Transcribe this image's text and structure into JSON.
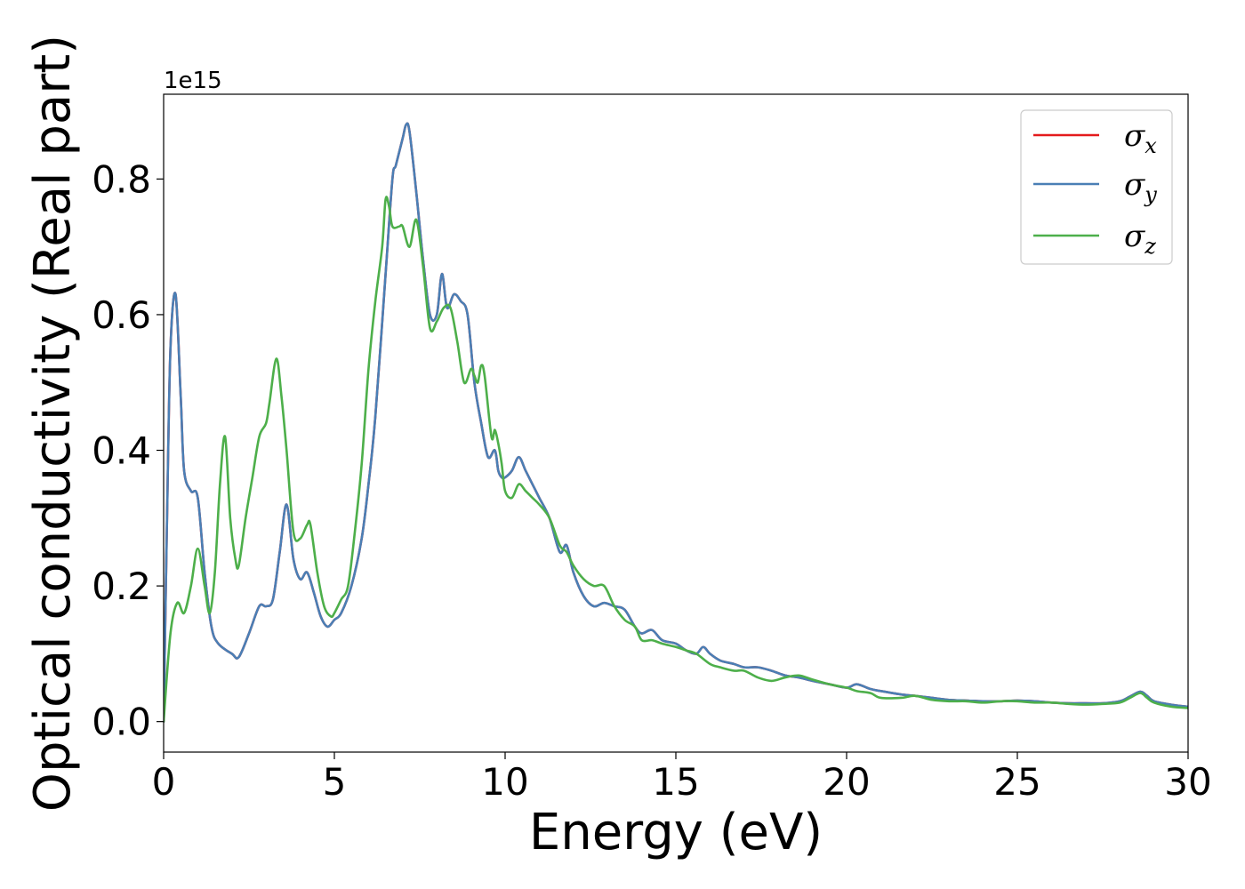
{
  "chart_data": {
    "type": "line",
    "title": "",
    "xlabel": "Energy (eV)",
    "ylabel": "Optical conductivity (Real part)",
    "y_offset_label": "1e15",
    "xlim": [
      0,
      30
    ],
    "ylim": [
      -0.045,
      0.925
    ],
    "x_ticks": [
      0,
      5,
      10,
      15,
      20,
      25,
      30
    ],
    "x_tick_labels": [
      "0",
      "5",
      "10",
      "15",
      "20",
      "25",
      "30"
    ],
    "y_ticks": [
      0.0,
      0.2,
      0.4,
      0.6,
      0.8
    ],
    "y_tick_labels": [
      "0.0",
      "0.2",
      "0.4",
      "0.6",
      "0.8"
    ],
    "grid": false,
    "legend_position": "top-right",
    "series": [
      {
        "name": "σx",
        "symbol": "σ",
        "subscript": "x",
        "color": "#e41a1c",
        "x": [
          0,
          0.1,
          0.2,
          0.35,
          0.5,
          0.6,
          0.8,
          1.0,
          1.2,
          1.4,
          1.6,
          2.0,
          2.2,
          2.5,
          2.8,
          3.0,
          3.2,
          3.4,
          3.6,
          3.8,
          4.0,
          4.2,
          4.4,
          4.6,
          4.8,
          5.0,
          5.2,
          5.5,
          5.8,
          6.0,
          6.2,
          6.5,
          6.7,
          6.8,
          7.0,
          7.1,
          7.2,
          7.4,
          7.6,
          7.8,
          8.0,
          8.15,
          8.3,
          8.5,
          8.7,
          8.9,
          9.1,
          9.3,
          9.5,
          9.7,
          9.8,
          9.9,
          10.0,
          10.2,
          10.4,
          10.6,
          10.8,
          11.0,
          11.3,
          11.6,
          11.8,
          12.0,
          12.3,
          12.6,
          12.9,
          13.2,
          13.5,
          13.8,
          14.0,
          14.3,
          14.6,
          15.0,
          15.3,
          15.6,
          15.8,
          16.0,
          16.3,
          16.7,
          17.0,
          17.4,
          17.8,
          18.2,
          18.6,
          19.0,
          19.5,
          20.0,
          20.3,
          20.7,
          21.0,
          21.6,
          22.0,
          22.5,
          23.0,
          23.5,
          24.0,
          24.5,
          25.0,
          25.5,
          26.0,
          26.5,
          27.0,
          27.5,
          28.0,
          28.3,
          28.6,
          28.8,
          29.0,
          29.5,
          30.0
        ],
        "y": [
          0.0,
          0.3,
          0.55,
          0.63,
          0.48,
          0.37,
          0.34,
          0.33,
          0.22,
          0.14,
          0.115,
          0.1,
          0.095,
          0.13,
          0.17,
          0.17,
          0.18,
          0.25,
          0.32,
          0.24,
          0.21,
          0.22,
          0.19,
          0.155,
          0.14,
          0.15,
          0.16,
          0.2,
          0.27,
          0.35,
          0.45,
          0.66,
          0.8,
          0.82,
          0.86,
          0.88,
          0.87,
          0.78,
          0.68,
          0.6,
          0.6,
          0.66,
          0.61,
          0.63,
          0.62,
          0.6,
          0.5,
          0.44,
          0.39,
          0.4,
          0.37,
          0.36,
          0.36,
          0.37,
          0.39,
          0.37,
          0.35,
          0.33,
          0.3,
          0.25,
          0.26,
          0.22,
          0.185,
          0.17,
          0.175,
          0.17,
          0.165,
          0.14,
          0.13,
          0.135,
          0.12,
          0.115,
          0.105,
          0.1,
          0.11,
          0.1,
          0.09,
          0.085,
          0.08,
          0.08,
          0.075,
          0.068,
          0.065,
          0.06,
          0.055,
          0.05,
          0.055,
          0.048,
          0.045,
          0.04,
          0.038,
          0.035,
          0.032,
          0.031,
          0.03,
          0.03,
          0.031,
          0.03,
          0.028,
          0.027,
          0.027,
          0.027,
          0.03,
          0.037,
          0.044,
          0.038,
          0.03,
          0.025,
          0.022
        ]
      },
      {
        "name": "σy",
        "symbol": "σ",
        "subscript": "y",
        "color": "#4a7fb5",
        "x": [
          0,
          0.1,
          0.2,
          0.35,
          0.5,
          0.6,
          0.8,
          1.0,
          1.2,
          1.4,
          1.6,
          2.0,
          2.2,
          2.5,
          2.8,
          3.0,
          3.2,
          3.4,
          3.6,
          3.8,
          4.0,
          4.2,
          4.4,
          4.6,
          4.8,
          5.0,
          5.2,
          5.5,
          5.8,
          6.0,
          6.2,
          6.5,
          6.7,
          6.8,
          7.0,
          7.1,
          7.2,
          7.4,
          7.6,
          7.8,
          8.0,
          8.15,
          8.3,
          8.5,
          8.7,
          8.9,
          9.1,
          9.3,
          9.5,
          9.7,
          9.8,
          9.9,
          10.0,
          10.2,
          10.4,
          10.6,
          10.8,
          11.0,
          11.3,
          11.6,
          11.8,
          12.0,
          12.3,
          12.6,
          12.9,
          13.2,
          13.5,
          13.8,
          14.0,
          14.3,
          14.6,
          15.0,
          15.3,
          15.6,
          15.8,
          16.0,
          16.3,
          16.7,
          17.0,
          17.4,
          17.8,
          18.2,
          18.6,
          19.0,
          19.5,
          20.0,
          20.3,
          20.7,
          21.0,
          21.6,
          22.0,
          22.5,
          23.0,
          23.5,
          24.0,
          24.5,
          25.0,
          25.5,
          26.0,
          26.5,
          27.0,
          27.5,
          28.0,
          28.3,
          28.6,
          28.8,
          29.0,
          29.5,
          30.0
        ],
        "y": [
          0.0,
          0.3,
          0.55,
          0.63,
          0.48,
          0.37,
          0.34,
          0.33,
          0.22,
          0.14,
          0.115,
          0.1,
          0.095,
          0.13,
          0.17,
          0.17,
          0.18,
          0.25,
          0.32,
          0.24,
          0.21,
          0.22,
          0.19,
          0.155,
          0.14,
          0.15,
          0.16,
          0.2,
          0.27,
          0.35,
          0.45,
          0.66,
          0.8,
          0.82,
          0.86,
          0.88,
          0.87,
          0.78,
          0.68,
          0.6,
          0.6,
          0.66,
          0.61,
          0.63,
          0.62,
          0.6,
          0.5,
          0.44,
          0.39,
          0.4,
          0.37,
          0.36,
          0.36,
          0.37,
          0.39,
          0.37,
          0.35,
          0.33,
          0.3,
          0.25,
          0.26,
          0.22,
          0.185,
          0.17,
          0.175,
          0.17,
          0.165,
          0.14,
          0.13,
          0.135,
          0.12,
          0.115,
          0.105,
          0.1,
          0.11,
          0.1,
          0.09,
          0.085,
          0.08,
          0.08,
          0.075,
          0.068,
          0.065,
          0.06,
          0.055,
          0.05,
          0.055,
          0.048,
          0.045,
          0.04,
          0.038,
          0.035,
          0.032,
          0.031,
          0.03,
          0.03,
          0.031,
          0.03,
          0.028,
          0.027,
          0.027,
          0.027,
          0.03,
          0.037,
          0.044,
          0.038,
          0.03,
          0.025,
          0.022
        ]
      },
      {
        "name": "σz",
        "symbol": "σ",
        "subscript": "z",
        "color": "#4daf4a",
        "x": [
          0,
          0.2,
          0.4,
          0.6,
          0.8,
          1.0,
          1.2,
          1.35,
          1.5,
          1.65,
          1.8,
          1.95,
          2.1,
          2.2,
          2.4,
          2.6,
          2.8,
          3.0,
          3.1,
          3.3,
          3.45,
          3.6,
          3.8,
          4.0,
          4.2,
          4.3,
          4.5,
          4.7,
          4.9,
          5.0,
          5.2,
          5.4,
          5.6,
          5.8,
          6.0,
          6.2,
          6.4,
          6.5,
          6.6,
          6.7,
          6.9,
          7.0,
          7.2,
          7.4,
          7.6,
          7.8,
          8.0,
          8.2,
          8.4,
          8.6,
          8.8,
          9.0,
          9.1,
          9.2,
          9.3,
          9.4,
          9.6,
          9.7,
          9.8,
          9.9,
          10.0,
          10.2,
          10.4,
          10.6,
          10.8,
          11.0,
          11.3,
          11.6,
          11.8,
          12.0,
          12.3,
          12.6,
          12.9,
          13.2,
          13.5,
          13.8,
          14.0,
          14.3,
          14.6,
          15.0,
          15.3,
          15.6,
          16.0,
          16.3,
          16.7,
          17.0,
          17.4,
          17.8,
          18.2,
          18.6,
          19.0,
          19.5,
          20.0,
          20.3,
          20.7,
          21.0,
          21.6,
          22.0,
          22.5,
          23.0,
          23.5,
          24.0,
          24.5,
          25.0,
          25.5,
          26.0,
          26.5,
          27.0,
          27.5,
          28.0,
          28.3,
          28.6,
          28.8,
          29.0,
          29.5,
          30.0
        ],
        "y": [
          0.0,
          0.13,
          0.175,
          0.16,
          0.2,
          0.255,
          0.2,
          0.16,
          0.22,
          0.35,
          0.42,
          0.3,
          0.24,
          0.23,
          0.3,
          0.36,
          0.42,
          0.44,
          0.47,
          0.535,
          0.48,
          0.4,
          0.28,
          0.27,
          0.29,
          0.29,
          0.22,
          0.17,
          0.155,
          0.16,
          0.18,
          0.2,
          0.28,
          0.38,
          0.52,
          0.62,
          0.7,
          0.77,
          0.76,
          0.73,
          0.73,
          0.73,
          0.7,
          0.74,
          0.67,
          0.58,
          0.59,
          0.61,
          0.61,
          0.56,
          0.5,
          0.52,
          0.51,
          0.5,
          0.525,
          0.51,
          0.42,
          0.43,
          0.41,
          0.38,
          0.34,
          0.33,
          0.35,
          0.34,
          0.33,
          0.32,
          0.3,
          0.26,
          0.25,
          0.23,
          0.21,
          0.2,
          0.2,
          0.17,
          0.15,
          0.14,
          0.12,
          0.12,
          0.115,
          0.11,
          0.105,
          0.1,
          0.085,
          0.08,
          0.075,
          0.075,
          0.065,
          0.06,
          0.065,
          0.068,
          0.062,
          0.055,
          0.05,
          0.045,
          0.042,
          0.035,
          0.035,
          0.038,
          0.032,
          0.03,
          0.03,
          0.028,
          0.03,
          0.03,
          0.028,
          0.028,
          0.026,
          0.025,
          0.026,
          0.028,
          0.035,
          0.042,
          0.035,
          0.028,
          0.022,
          0.02
        ]
      }
    ]
  }
}
